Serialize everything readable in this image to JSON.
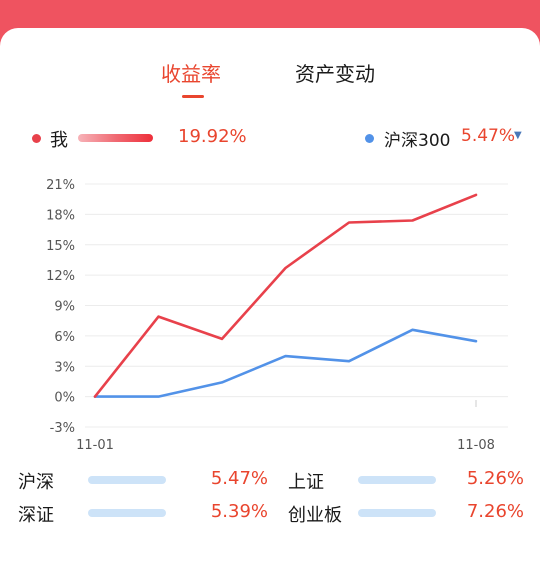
{
  "tabs": [
    {
      "label": "收益率",
      "active": true
    },
    {
      "label": "资产变动",
      "active": false
    }
  ],
  "legend": {
    "me": {
      "label": "我",
      "value": "19.92%",
      "color": "#e8414b"
    },
    "benchmark": {
      "label": "沪深300",
      "value": "5.47%",
      "color": "#5292e8",
      "icon": "dropdown-triangle-icon"
    }
  },
  "colors": {
    "accent": "#e9452e",
    "header": "#ef5360",
    "bar_fill": "#2f86e6",
    "bar_bg": "#cde3f8"
  },
  "chart_data": {
    "type": "line",
    "y_ticks": [
      "21%",
      "18%",
      "15%",
      "12%",
      "9%",
      "6%",
      "3%",
      "0%",
      "-3%"
    ],
    "x_labels": [
      "11-01",
      "11-08"
    ],
    "ylim": [
      -3,
      21
    ],
    "grid": true,
    "series": [
      {
        "name": "我",
        "color": "#e8414b",
        "values": [
          0,
          7.9,
          5.7,
          12.7,
          17.2,
          17.4,
          19.92
        ]
      },
      {
        "name": "沪深300",
        "color": "#5292e8",
        "values": [
          0,
          0,
          1.4,
          4.0,
          3.5,
          6.6,
          5.47
        ]
      }
    ]
  },
  "indices": [
    {
      "name": "沪深",
      "value": "5.47%",
      "bar": 0.22
    },
    {
      "name": "上证",
      "value": "5.26%",
      "bar": 0.22
    },
    {
      "name": "深证",
      "value": "5.39%",
      "bar": 0.22
    },
    {
      "name": "创业板",
      "value": "7.26%",
      "bar": 0.32
    }
  ]
}
